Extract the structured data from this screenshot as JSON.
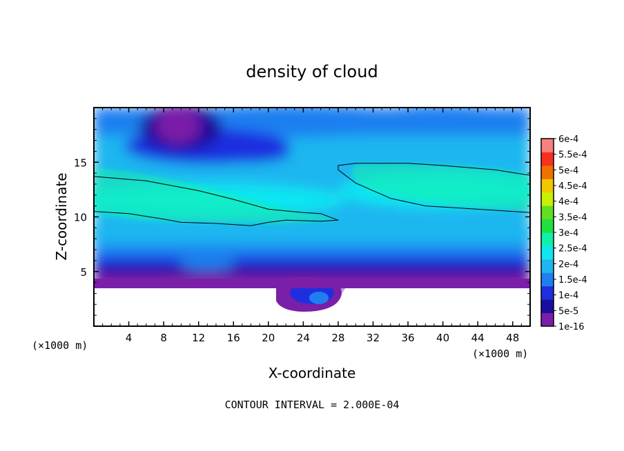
{
  "chart_data": {
    "type": "heatmap",
    "title": "density of cloud",
    "xlabel": "X-coordinate",
    "ylabel": "Z-coordinate",
    "x_unit": "(×1000 m)",
    "y_unit": "(×1000 m)",
    "xlim": [
      0,
      50
    ],
    "ylim": [
      0,
      20
    ],
    "x_ticks": [
      4,
      8,
      12,
      16,
      20,
      24,
      28,
      32,
      36,
      40,
      44,
      48
    ],
    "y_ticks": [
      5,
      10,
      15
    ],
    "footer": "CONTOUR INTERVAL = 2.000E-04",
    "colorbar": {
      "levels": [
        "1e-16",
        "5e-5",
        "1e-4",
        "1.5e-4",
        "2e-4",
        "2.5e-4",
        "3e-4",
        "3.5e-4",
        "4e-4",
        "4.5e-4",
        "5e-4",
        "5.5e-4",
        "6e-4"
      ],
      "colors": [
        "#7a1fa8",
        "#1a0f9c",
        "#1f2fe0",
        "#1f7ff0",
        "#1fb6f0",
        "#10e6f0",
        "#10f0a8",
        "#20e040",
        "#60e020",
        "#c8f000",
        "#f0c800",
        "#f07000",
        "#f83020",
        "#f88080"
      ]
    },
    "contour_lines": [
      {
        "level": "2e-4",
        "points": [
          [
            0,
            13.7
          ],
          [
            6,
            13.3
          ],
          [
            12,
            12.4
          ],
          [
            16,
            11.6
          ],
          [
            20,
            10.7
          ],
          [
            24,
            10.4
          ],
          [
            26,
            10.3
          ],
          [
            28,
            9.7
          ],
          [
            26,
            9.6
          ],
          [
            22,
            9.7
          ],
          [
            20,
            9.5
          ],
          [
            18,
            9.2
          ],
          [
            14,
            9.4
          ],
          [
            10,
            9.5
          ],
          [
            8,
            9.8
          ],
          [
            4,
            10.3
          ],
          [
            0,
            10.5
          ]
        ]
      },
      {
        "level": "2e-4",
        "points": [
          [
            50,
            13.8
          ],
          [
            46,
            14.3
          ],
          [
            40,
            14.7
          ],
          [
            36,
            14.9
          ],
          [
            30,
            14.9
          ],
          [
            28,
            14.7
          ],
          [
            28,
            14.3
          ],
          [
            30,
            13.1
          ],
          [
            34,
            11.7
          ],
          [
            38,
            11.0
          ],
          [
            42,
            10.8
          ],
          [
            46,
            10.6
          ],
          [
            50,
            10.4
          ]
        ]
      }
    ]
  }
}
